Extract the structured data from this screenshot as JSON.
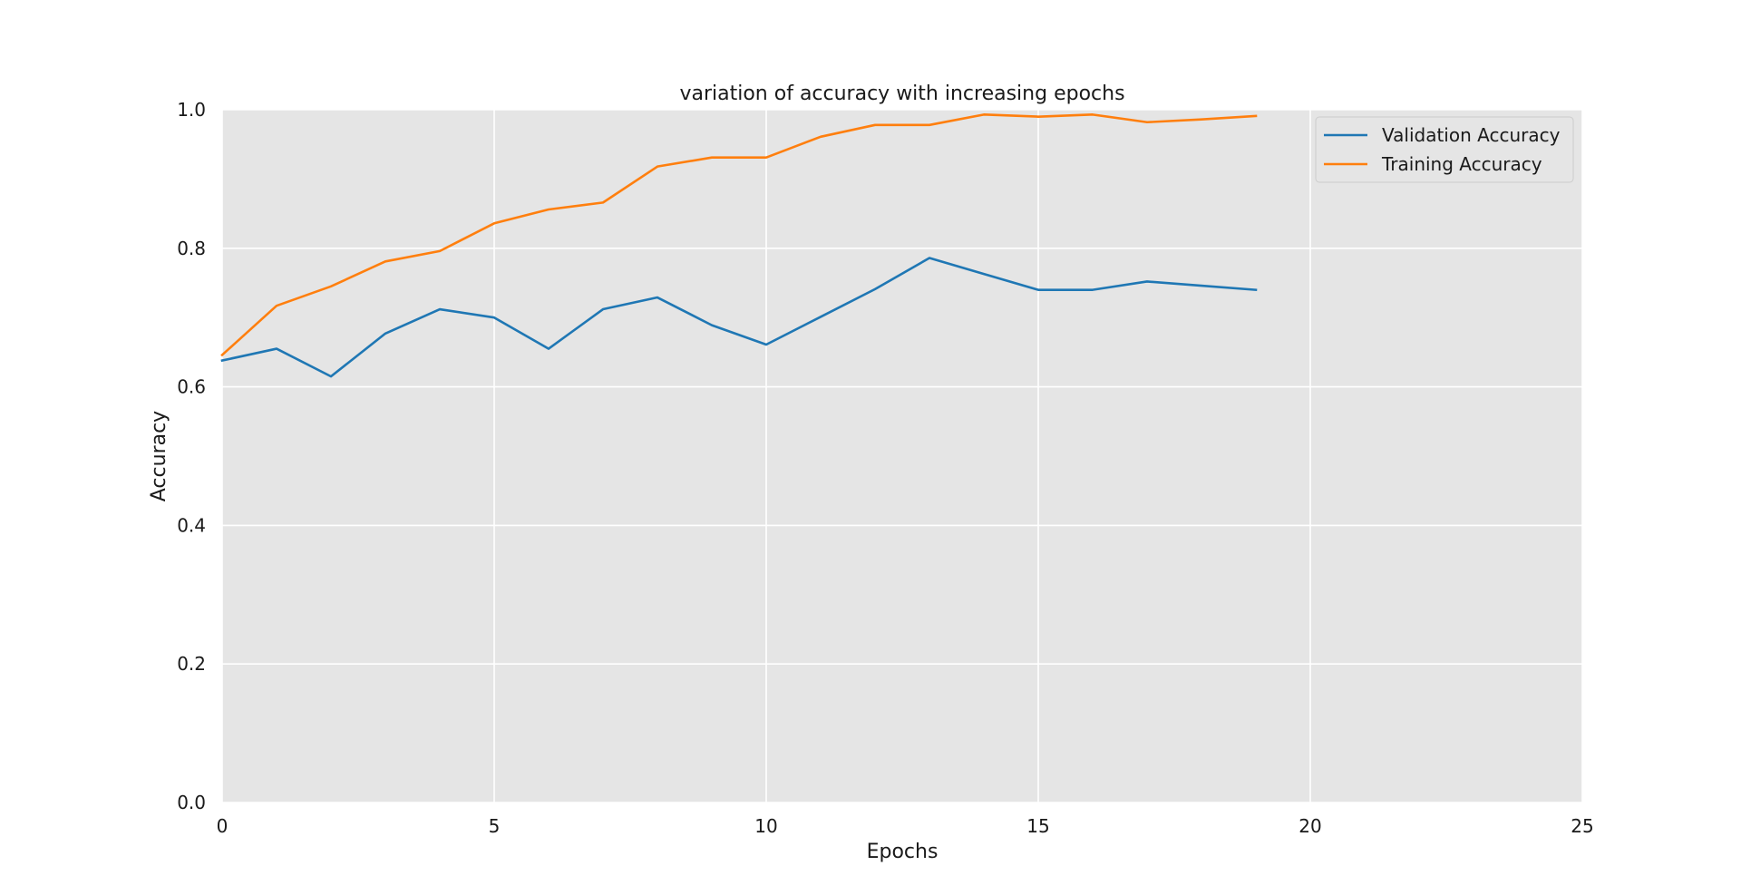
{
  "chart_data": {
    "type": "line",
    "title": "variation  of accuracy with increasing epochs",
    "xlabel": "Epochs",
    "ylabel": "Accuracy",
    "xlim": [
      0,
      25
    ],
    "ylim": [
      0.0,
      1.0
    ],
    "xticks": [
      0,
      5,
      10,
      15,
      20,
      25
    ],
    "yticks": [
      0.0,
      0.2,
      0.4,
      0.6,
      0.8,
      1.0
    ],
    "xtick_labels": [
      "0",
      "5",
      "10",
      "15",
      "20",
      "25"
    ],
    "ytick_labels": [
      "0.0",
      "0.2",
      "0.4",
      "0.6",
      "0.8",
      "1.0"
    ],
    "grid": true,
    "legend_position": "top-right",
    "x": [
      0,
      1,
      2,
      3,
      4,
      5,
      6,
      7,
      8,
      9,
      10,
      11,
      12,
      13,
      14,
      15,
      16,
      17,
      18,
      19
    ],
    "series": [
      {
        "name": "Validation Accuracy",
        "color": "#1f77b4",
        "values": [
          0.638,
          0.655,
          0.615,
          0.677,
          0.712,
          0.7,
          0.655,
          0.712,
          0.729,
          0.689,
          0.661,
          0.701,
          0.741,
          0.786,
          0.763,
          0.74,
          0.74,
          0.752,
          0.746,
          0.74
        ]
      },
      {
        "name": "Training Accuracy",
        "color": "#ff7f0e",
        "values": [
          0.646,
          0.717,
          0.745,
          0.781,
          0.796,
          0.836,
          0.856,
          0.866,
          0.918,
          0.931,
          0.931,
          0.961,
          0.978,
          0.978,
          0.993,
          0.99,
          0.993,
          0.982,
          0.986,
          0.991
        ]
      }
    ],
    "colors": {
      "plot_background": "#e5e5e5",
      "grid": "#ffffff"
    }
  }
}
